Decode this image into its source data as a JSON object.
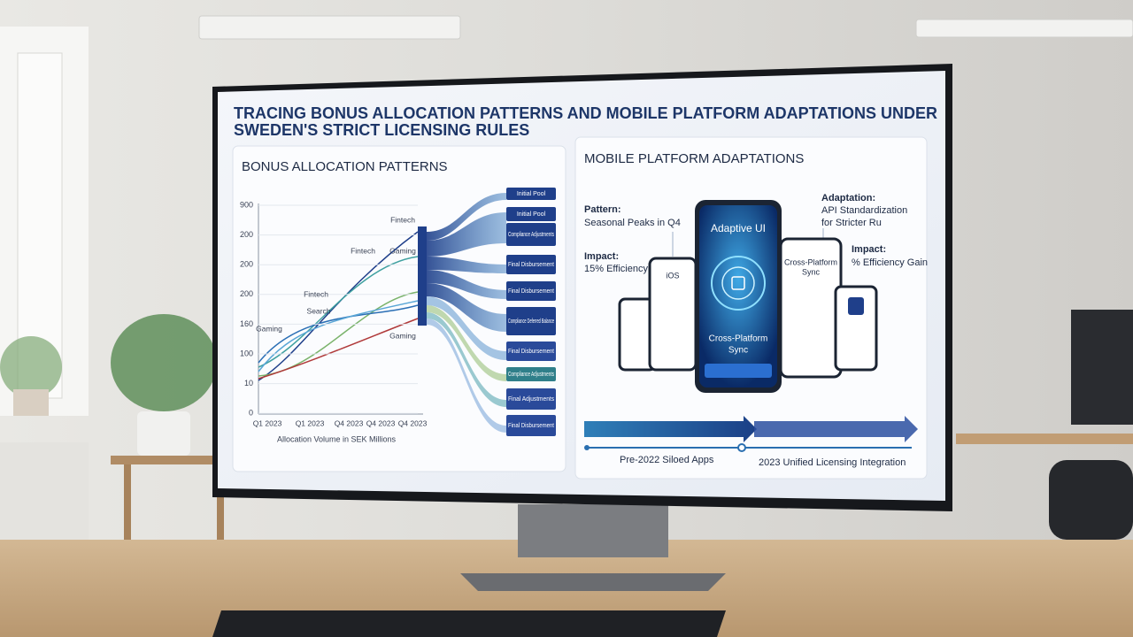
{
  "screen": {
    "title_lines": [
      "TRACING BONUS ALLOCATION PATTERNS AND MOBILE PLATFORM ADAPTATIONS UNDER",
      "SWEDEN'S STRICT LICENSING RULES"
    ],
    "left_panel": {
      "heading": "BONUS ALLOCATION PATTERNS",
      "y_labels": [
        "900",
        "200",
        "200",
        "200",
        "160",
        "100",
        "10",
        "0"
      ],
      "x_labels": [
        "Q1 2023",
        "Q1 2023",
        "Q4 2023",
        "Q4 2023",
        "Q4 2023"
      ],
      "x_axis_label": "Allocation Volume in SEK Millions",
      "line_labels": [
        "Fintech",
        "Fintech",
        "Gaming",
        "Fintech",
        "Search",
        "Gaming",
        "Gaming"
      ],
      "flow_labels": [
        "Initial Pool",
        "Initial Pool",
        "Compliance Adjustments",
        "Final Disbursement",
        "Final Disbursement",
        "Compliance Deferred Balance",
        "Final Disbursement",
        "Compliance Adjustments",
        "Final Adjustments",
        "Final Disbursement"
      ]
    },
    "right_panel": {
      "heading": "MOBILE PLATFORM ADAPTATIONS",
      "pattern_label": "Pattern:",
      "pattern_text": "Seasonal Peaks in Q4",
      "impact_left_label": "Impact:",
      "impact_left_text": "15% Efficiency",
      "adaptation_label": "Adaptation:",
      "adaptation_lines": [
        "API Standardization",
        "for Stricter Ru"
      ],
      "impact_right_label": "Impact:",
      "impact_right_text": "% Efficiency Gain",
      "phone_center_title": "Adaptive UI",
      "phone_center_lines": [
        "Cross-Platform",
        "Sync"
      ],
      "phone_left_title": "iOS",
      "phone_right_lines": [
        "Cross-Platform",
        "Sync"
      ],
      "timeline_start": "Pre-2022 Siloed Apps",
      "timeline_end": "2023 Unified Licensing Integration"
    }
  }
}
